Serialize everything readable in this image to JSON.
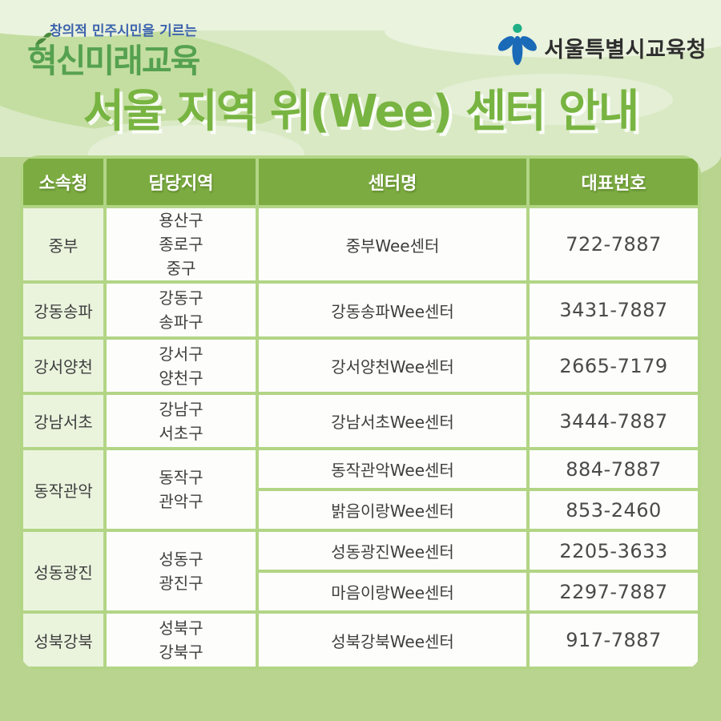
{
  "header": {
    "brand_tagline": "창의적 민주시민을 기르는",
    "brand_logo": "혁신미래교육",
    "org_name": "서울특별시교육청"
  },
  "title": "서울 지역 위(Wee) 센터 안내",
  "table": {
    "columns": [
      "소속청",
      "담당지역",
      "센터명",
      "대표번호"
    ],
    "rows": [
      {
        "office": "중부",
        "districts": [
          "용산구",
          "종로구",
          "중구"
        ],
        "centers": [
          {
            "name": "중부Wee센터",
            "phone": "722-7887"
          }
        ]
      },
      {
        "office": "강동송파",
        "districts": [
          "강동구",
          "송파구"
        ],
        "centers": [
          {
            "name": "강동송파Wee센터",
            "phone": "3431-7887"
          }
        ]
      },
      {
        "office": "강서양천",
        "districts": [
          "강서구",
          "양천구"
        ],
        "centers": [
          {
            "name": "강서양천Wee센터",
            "phone": "2665-7179"
          }
        ]
      },
      {
        "office": "강남서초",
        "districts": [
          "강남구",
          "서초구"
        ],
        "centers": [
          {
            "name": "강남서초Wee센터",
            "phone": "3444-7887"
          }
        ]
      },
      {
        "office": "동작관악",
        "districts": [
          "동작구",
          "관악구"
        ],
        "centers": [
          {
            "name": "동작관악Wee센터",
            "phone": "884-7887"
          },
          {
            "name": "밝음이랑Wee센터",
            "phone": "853-2460"
          }
        ]
      },
      {
        "office": "성동광진",
        "districts": [
          "성동구",
          "광진구"
        ],
        "centers": [
          {
            "name": "성동광진Wee센터",
            "phone": "2205-3633"
          },
          {
            "name": "마음이랑Wee센터",
            "phone": "2297-7887"
          }
        ]
      },
      {
        "office": "성북강북",
        "districts": [
          "성북구",
          "강북구"
        ],
        "centers": [
          {
            "name": "성북강북Wee센터",
            "phone": "917-7887"
          }
        ]
      }
    ]
  },
  "colors": {
    "header_green": "#7cac41",
    "border_green": "#b2d585",
    "office_cell_bg": "#eaf4dd",
    "title_green": "#78b441",
    "tagline_blue": "#3c63ad",
    "brand_logo_green": "#55a150",
    "bg_light_green": "#d9e9c4",
    "bg_medium_green": "#b9d48f",
    "bg_pale_green": "#eaf3dd",
    "logo_blue": "#1a6ab8",
    "logo_teal": "#1fae86"
  }
}
